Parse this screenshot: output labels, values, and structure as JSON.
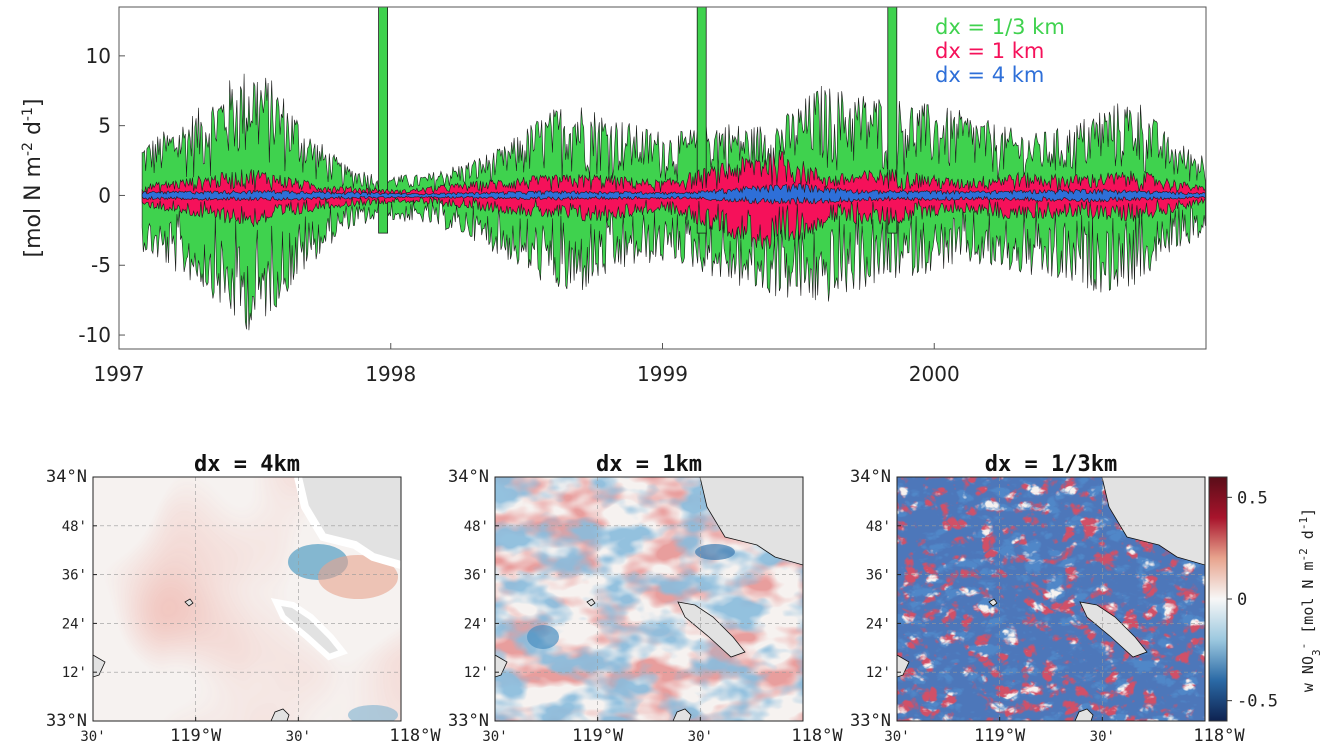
{
  "chart_data": [
    {
      "type": "area",
      "ylabel_parts": [
        "[mol N m",
        "-2",
        " d",
        "-1",
        "]"
      ],
      "ylim": [
        -11,
        13.5
      ],
      "y_ticks": [
        -10,
        -5,
        0,
        5,
        10
      ],
      "xlim": [
        "1997-01-01",
        "2000-12-31"
      ],
      "x_ticks": [
        {
          "date": "1997-01-01",
          "label": "1997"
        },
        {
          "date": "1998-01-01",
          "label": "1998"
        },
        {
          "date": "1999-01-01",
          "label": "1999"
        },
        {
          "date": "2000-01-01",
          "label": "2000"
        }
      ],
      "legend_position": "top-right",
      "series": [
        {
          "name": "dx = 1/3 km",
          "color": "#3fd24e",
          "x": [
            "1997-02-01",
            "1997-03-15",
            "1997-05-01",
            "1997-06-01",
            "1997-07-01",
            "1997-08-01",
            "1997-09-15",
            "1997-11-01",
            "1997-12-20",
            "1998-02-15",
            "1998-04-15",
            "1998-06-01",
            "1998-07-15",
            "1998-09-01",
            "1998-10-15",
            "1998-12-01",
            "1999-01-20",
            "1999-03-15",
            "1999-05-01",
            "1999-06-15",
            "1999-08-01",
            "1999-09-15",
            "1999-11-15",
            "2000-01-01",
            "2000-02-15",
            "2000-04-01",
            "2000-05-15",
            "2000-07-01",
            "2000-08-15",
            "2000-10-01",
            "2000-11-15",
            "2000-12-31"
          ],
          "upper": [
            3.8,
            5.0,
            6.8,
            8.5,
            9.5,
            8.0,
            4.5,
            2.2,
            1.5,
            1.5,
            2.5,
            3.5,
            5.5,
            7.0,
            6.0,
            5.0,
            4.5,
            5.5,
            5.0,
            5.8,
            8.0,
            7.5,
            7.0,
            6.5,
            6.0,
            5.0,
            4.5,
            5.0,
            6.5,
            7.0,
            4.0,
            3.0
          ],
          "lower": [
            -4.0,
            -5.5,
            -7.0,
            -9.0,
            -10.0,
            -8.0,
            -5.0,
            -2.5,
            -1.8,
            -2.0,
            -3.0,
            -4.5,
            -6.0,
            -7.5,
            -6.0,
            -5.0,
            -4.8,
            -6.0,
            -7.0,
            -7.5,
            -8.0,
            -7.0,
            -6.0,
            -5.5,
            -5.0,
            -5.5,
            -6.0,
            -6.5,
            -7.0,
            -6.5,
            -4.0,
            -3.0
          ],
          "spikes": [
            {
              "date": "1997-12-21",
              "value": 13.5
            },
            {
              "date": "1999-02-22",
              "value": 13.5
            },
            {
              "date": "1999-11-05",
              "value": 13.5
            }
          ]
        },
        {
          "name": "dx = 1 km",
          "color": "#f5115a",
          "x": [
            "1997-02-01",
            "1997-05-01",
            "1997-07-01",
            "1997-10-01",
            "1998-01-15",
            "1998-04-01",
            "1998-07-01",
            "1998-10-01",
            "1999-01-01",
            "1999-04-01",
            "1999-06-01",
            "1999-08-15",
            "1999-11-01",
            "2000-02-01",
            "2000-04-15",
            "2000-07-01",
            "2000-10-01",
            "2000-12-31"
          ],
          "upper": [
            0.8,
            1.5,
            2.0,
            0.8,
            0.4,
            0.9,
            1.4,
            1.6,
            1.1,
            2.5,
            3.5,
            1.5,
            2.0,
            1.2,
            1.7,
            1.5,
            1.8,
            0.6
          ],
          "lower": [
            -0.8,
            -1.8,
            -2.3,
            -1.0,
            -0.5,
            -0.9,
            -1.5,
            -2.0,
            -1.2,
            -3.0,
            -4.5,
            -2.0,
            -2.2,
            -1.2,
            -1.8,
            -1.6,
            -1.9,
            -0.6
          ]
        },
        {
          "name": "dx = 4 km",
          "color": "#2e6fd8",
          "x": [
            "1997-02-01",
            "1997-08-01",
            "1998-02-01",
            "1998-08-01",
            "1999-02-01",
            "1999-05-01",
            "1999-07-01",
            "1999-10-01",
            "2000-03-01",
            "2000-08-01",
            "2000-12-31"
          ],
          "upper": [
            0.3,
            0.4,
            0.15,
            0.35,
            0.25,
            0.7,
            0.9,
            0.4,
            0.35,
            0.5,
            0.2
          ],
          "lower": [
            -0.3,
            -0.4,
            -0.15,
            -0.35,
            -0.25,
            -0.6,
            -0.7,
            -0.4,
            -0.35,
            -0.5,
            -0.2
          ]
        }
      ]
    },
    {
      "type": "heatmap",
      "panels": [
        {
          "title": "dx = 4km",
          "amplitude": 0.15
        },
        {
          "title": "dx = 1km",
          "amplitude": 0.2
        },
        {
          "title": "dx = 1/3km",
          "amplitude": 0.55
        }
      ],
      "lat_ticks": [
        "34°N",
        "48'",
        "36'",
        "24'",
        "12'",
        "33°N"
      ],
      "lon_ticks": [
        "30'",
        "119°W",
        "30'",
        "118°W"
      ],
      "colorbar": {
        "label_parts": [
          "w NO",
          "3",
          "-",
          " [mol N m",
          "-2",
          " d",
          "-1",
          "]"
        ],
        "ticks": [
          {
            "value": 0.5,
            "label": "0.5"
          },
          {
            "value": 0,
            "label": "0"
          },
          {
            "value": -0.5,
            "label": "-0.5"
          }
        ],
        "range": [
          -0.6,
          0.6
        ],
        "colormap": [
          "#5a0d18",
          "#a8142c",
          "#e8a48e",
          "#f7f7f7",
          "#9cc8df",
          "#2b6aa6",
          "#0e2250"
        ]
      },
      "land_color": "#e2e2e2",
      "grid": true
    }
  ]
}
